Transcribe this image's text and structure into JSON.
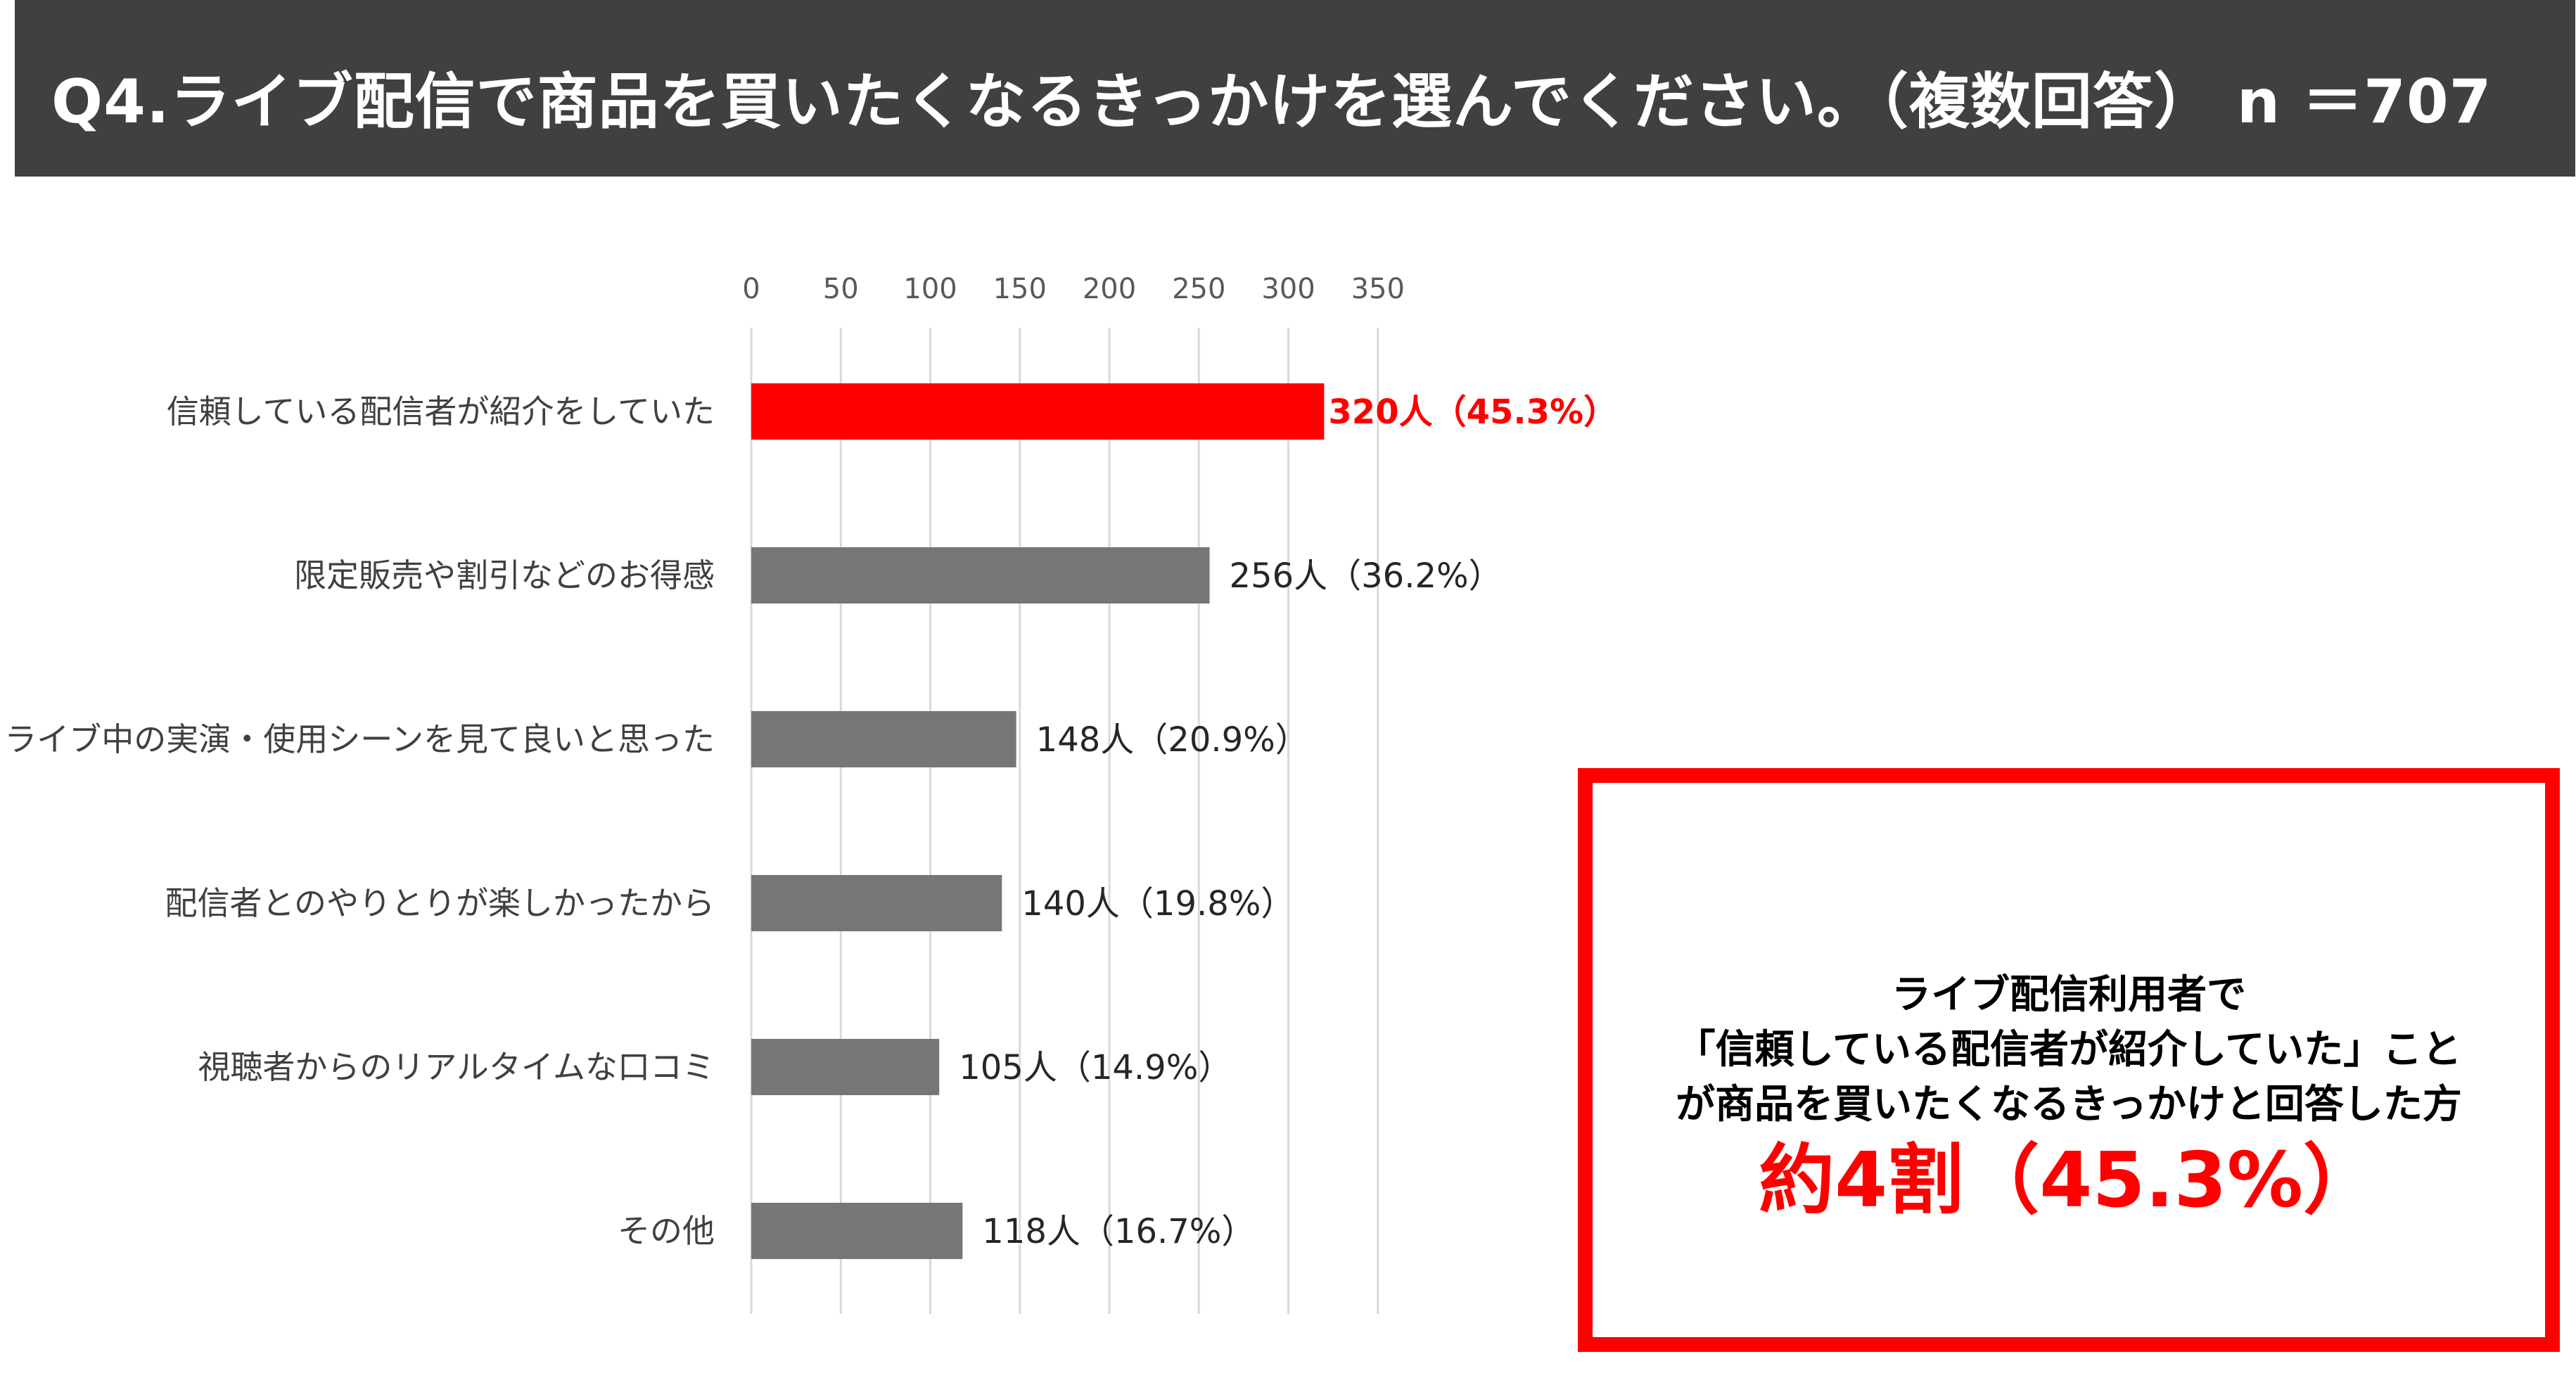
{
  "header": {
    "title": "Q4.ライブ配信で商品を買いたくなるきっかけを選んでください。（複数回答） n ＝707"
  },
  "colors": {
    "header_bg": "#404040",
    "bar_default": "#767676",
    "bar_highlight": "#ff0000",
    "gridline": "#d9d9d9",
    "callout_border": "#ff0000"
  },
  "chart_data": {
    "type": "bar",
    "orientation": "horizontal",
    "xlim": [
      0,
      350
    ],
    "xticks": [
      0,
      50,
      100,
      150,
      200,
      250,
      300,
      350
    ],
    "axis_position": "top",
    "grid": true,
    "categories": [
      "信頼している配信者が紹介をしていた",
      "限定販売や割引などのお得感",
      "ライブ中の実演・使用シーンを見て良いと思った",
      "配信者とのやりとりが楽しかったから",
      "視聴者からのリアルタイムな口コミ",
      "その他"
    ],
    "values": [
      320,
      256,
      148,
      140,
      105,
      118
    ],
    "data_labels": [
      "320人（45.3%）",
      "256人（36.2%）",
      "148人（20.9%）",
      "140人（19.8%）",
      "105人（14.9%）",
      "118人（16.7%）"
    ],
    "highlight_index": 0
  },
  "callout": {
    "lines": [
      "ライブ配信利用者で",
      "「信頼している配信者が紹介していた」こと",
      "が商品を買いたくなるきっかけと回答した方"
    ],
    "highlight": "約4割（45.3%）"
  }
}
